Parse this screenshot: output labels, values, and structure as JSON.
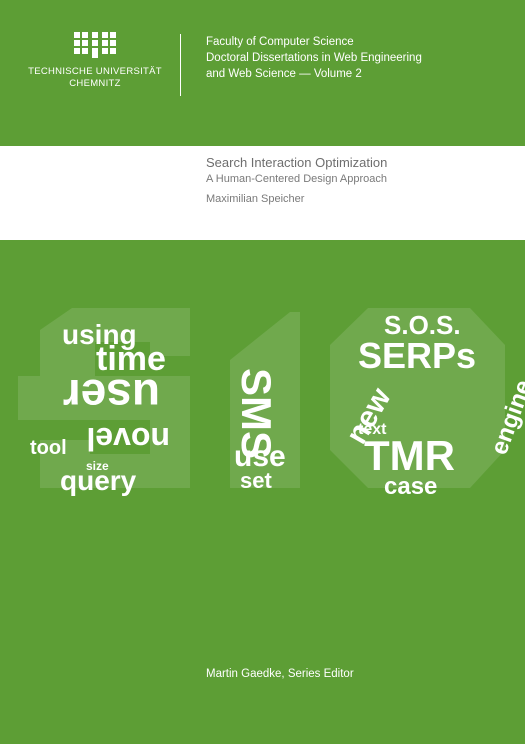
{
  "logo": {
    "line1": "TECHNISCHE UNIVERSITÄT",
    "line2": "CHEMNITZ",
    "icon": "university-building-icon"
  },
  "series": {
    "line1": "Faculty of Computer Science",
    "line2": "Doctoral Dissertations in Web Engineering",
    "line3": "and Web Science — Volume 2"
  },
  "book": {
    "title": "Search Interaction Optimization",
    "subtitle": "A Human-Centered Design Approach",
    "author": "Maximilian Speicher"
  },
  "artwork": {
    "big_words": [
      "using",
      "time",
      "user",
      "novel",
      "tool",
      "query",
      "SMS",
      "use",
      "set",
      "S.O.S.",
      "SERPs",
      "new",
      "engine",
      "TMR",
      "case",
      "text",
      "size"
    ]
  },
  "editor": "Martin Gaedke, Series Editor",
  "colors": {
    "background": "#5d9e35",
    "band": "#ffffff",
    "title_text": "#6e6e6e"
  }
}
